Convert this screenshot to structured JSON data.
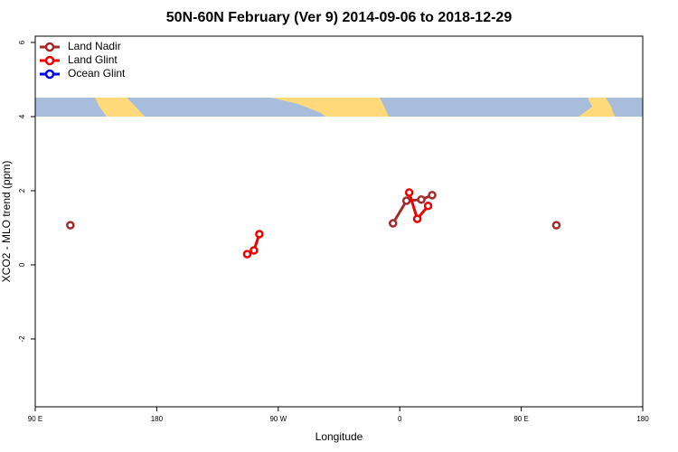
{
  "chart_data": {
    "type": "line",
    "title": "50N-60N February (Ver 9)   2014-09-06 to 2018-12-29",
    "x_label": "Longitude",
    "y_label": "XCO2 - MLO trend (ppm)",
    "xlim": [
      90,
      540
    ],
    "xticks": [
      {
        "value": 90,
        "label": "90 E"
      },
      {
        "value": 180,
        "label": "180"
      },
      {
        "value": 270,
        "label": "90 W"
      },
      {
        "value": 360,
        "label": "0"
      },
      {
        "value": 450,
        "label": "90 E"
      },
      {
        "value": 540,
        "label": "180"
      }
    ],
    "ylim": [
      -3.83,
      6.17
    ],
    "yticks": [
      -2,
      0,
      2,
      4,
      6
    ],
    "legend": "top-left",
    "series": [
      {
        "name": "Land Nadir",
        "color": "#a52a2a",
        "x": [
          116,
          null,
          355,
          365,
          376,
          384,
          null,
          476
        ],
        "values": [
          1.07,
          null,
          1.12,
          1.73,
          1.76,
          1.88,
          null,
          1.07
        ]
      },
      {
        "name": "Land Glint",
        "color": "#ee0000",
        "x": [
          247,
          252,
          256,
          null,
          367,
          373,
          381
        ],
        "values": [
          0.29,
          0.39,
          0.83,
          null,
          1.95,
          1.24,
          1.59
        ]
      },
      {
        "name": "Ocean Glint",
        "color": "#0000ee",
        "x": [],
        "values": []
      }
    ]
  }
}
